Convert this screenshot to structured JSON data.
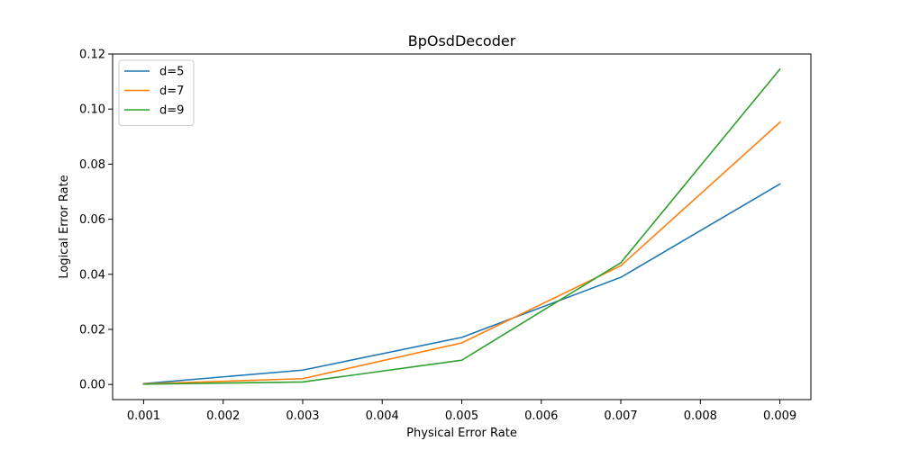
{
  "chart_data": {
    "type": "line",
    "title": "BpOsdDecoder",
    "xlabel": "Physical Error Rate",
    "ylabel": "Logical Error Rate",
    "x": [
      0.001,
      0.003,
      0.005,
      0.007,
      0.009
    ],
    "xlim": [
      0.00061,
      0.00939
    ],
    "ylim": [
      -0.0055,
      0.12
    ],
    "xticks": [
      0.001,
      0.002,
      0.003,
      0.004,
      0.005,
      0.006,
      0.007,
      0.008,
      0.009
    ],
    "xtick_labels": [
      "0.001",
      "0.002",
      "0.003",
      "0.004",
      "0.005",
      "0.006",
      "0.007",
      "0.008",
      "0.009"
    ],
    "yticks": [
      0.0,
      0.02,
      0.04,
      0.06,
      0.08,
      0.1,
      0.12
    ],
    "ytick_labels": [
      "0.00",
      "0.02",
      "0.04",
      "0.06",
      "0.08",
      "0.10",
      "0.12"
    ],
    "grid": false,
    "legend_position": "top-left",
    "series": [
      {
        "name": "d=5",
        "color": "#1f77b4",
        "values": [
          0.0003,
          0.0052,
          0.0171,
          0.0389,
          0.0728
        ]
      },
      {
        "name": "d=7",
        "color": "#ff7f0e",
        "values": [
          0.0002,
          0.0021,
          0.0151,
          0.0431,
          0.0952
        ]
      },
      {
        "name": "d=9",
        "color": "#2ca02c",
        "values": [
          0.0001,
          0.0009,
          0.0088,
          0.0442,
          0.1145
        ]
      }
    ]
  }
}
